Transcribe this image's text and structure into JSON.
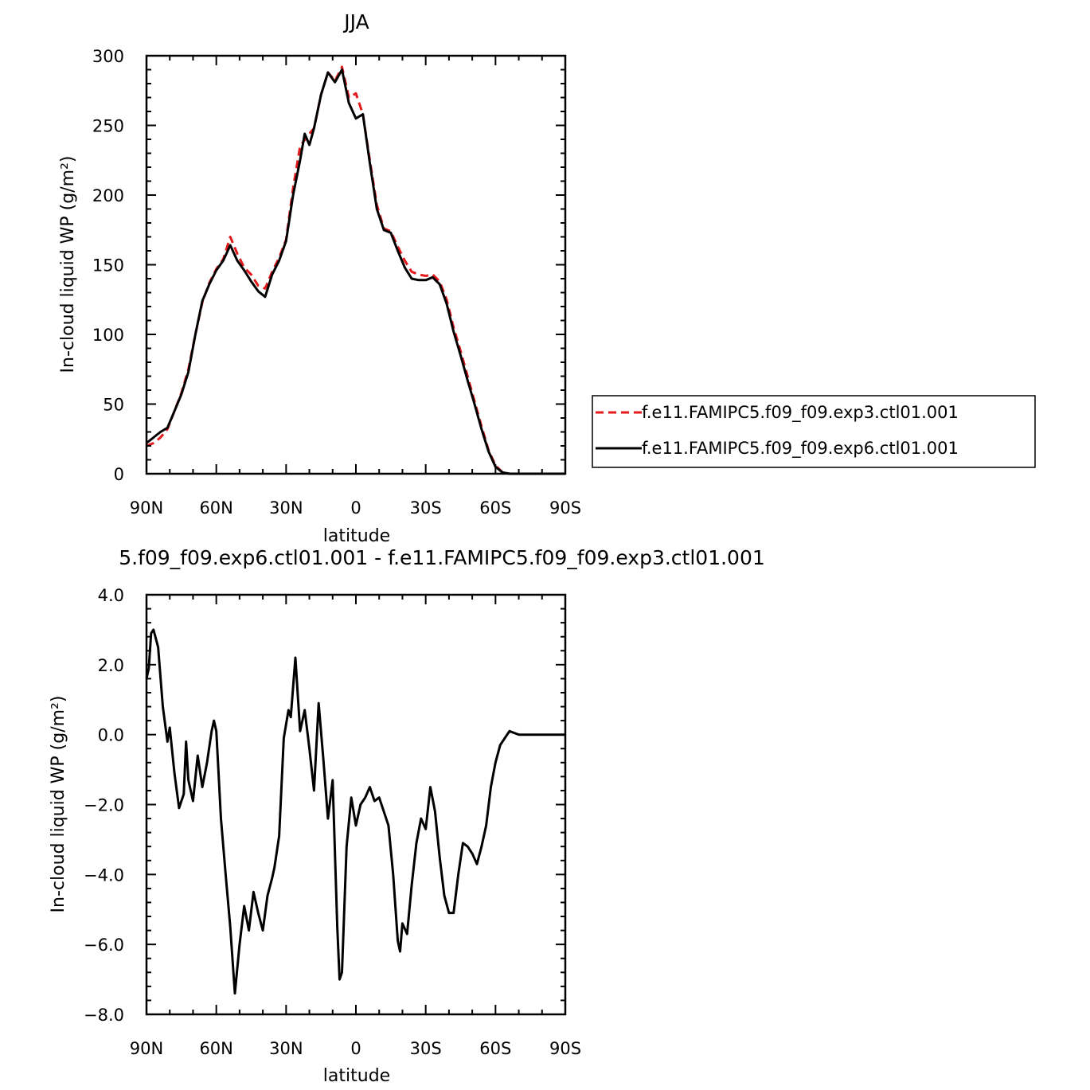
{
  "chart_data": [
    {
      "type": "line",
      "title": "JJA",
      "xlabel": "latitude",
      "ylabel": "In-cloud liquid WP (g/m²)",
      "xlim": [
        90,
        -90
      ],
      "ylim": [
        0,
        300
      ],
      "xticks": [
        90,
        60,
        30,
        0,
        -30,
        -60,
        -90
      ],
      "xtick_labels": [
        "90N",
        "60N",
        "30N",
        "0",
        "30S",
        "60S",
        "90S"
      ],
      "yticks": [
        0,
        50,
        100,
        150,
        200,
        250,
        300
      ],
      "ytick_labels": [
        "0",
        "50",
        "100",
        "150",
        "200",
        "250",
        "300"
      ],
      "grid": false,
      "legend": "outside-right",
      "series": [
        {
          "name": "f.e11.FAMIPC5.f09_f09.exp3.ctl01.001",
          "color": "#e41a1c",
          "dash": "dashed",
          "points": [
            [
              90,
              20
            ],
            [
              87,
              22
            ],
            [
              84,
              26
            ],
            [
              81,
              32
            ],
            [
              78,
              45
            ],
            [
              75,
              58
            ],
            [
              72,
              75
            ],
            [
              69,
              100
            ],
            [
              66,
              123
            ],
            [
              63,
              137
            ],
            [
              60,
              147
            ],
            [
              57,
              154
            ],
            [
              54,
              170
            ],
            [
              51,
              158
            ],
            [
              48,
              148
            ],
            [
              45,
              143
            ],
            [
              42,
              135
            ],
            [
              39,
              133
            ],
            [
              36,
              145
            ],
            [
              33,
              155
            ],
            [
              30,
              168
            ],
            [
              27,
              205
            ],
            [
              24,
              235
            ],
            [
              21,
              242
            ],
            [
              18,
              248
            ],
            [
              15,
              272
            ],
            [
              12,
              288
            ],
            [
              9,
              282
            ],
            [
              6,
              292
            ],
            [
              3,
              270
            ],
            [
              0,
              273
            ],
            [
              -3,
              258
            ],
            [
              -6,
              225
            ],
            [
              -9,
              193
            ],
            [
              -12,
              176
            ],
            [
              -15,
              174
            ],
            [
              -18,
              163
            ],
            [
              -21,
              153
            ],
            [
              -24,
              145
            ],
            [
              -27,
              143
            ],
            [
              -30,
              142
            ],
            [
              -33,
              143
            ],
            [
              -36,
              138
            ],
            [
              -39,
              125
            ],
            [
              -42,
              105
            ],
            [
              -45,
              88
            ],
            [
              -48,
              70
            ],
            [
              -51,
              52
            ],
            [
              -54,
              34
            ],
            [
              -57,
              17
            ],
            [
              -60,
              6
            ],
            [
              -63,
              1
            ],
            [
              -66,
              0
            ],
            [
              -69,
              0
            ],
            [
              -90,
              0
            ]
          ]
        },
        {
          "name": "f.e11.FAMIPC5.f09_f09.exp6.ctl01.001",
          "color": "#000000",
          "dash": "solid",
          "points": [
            [
              90,
              22
            ],
            [
              87,
              26
            ],
            [
              84,
              30
            ],
            [
              81,
              33
            ],
            [
              78,
              45
            ],
            [
              75,
              57
            ],
            [
              72,
              73
            ],
            [
              69,
              100
            ],
            [
              66,
              124
            ],
            [
              63,
              136
            ],
            [
              60,
              146
            ],
            [
              57,
              153
            ],
            [
              54,
              164
            ],
            [
              51,
              153
            ],
            [
              48,
              146
            ],
            [
              45,
              138
            ],
            [
              42,
              131
            ],
            [
              39,
              127
            ],
            [
              36,
              143
            ],
            [
              33,
              153
            ],
            [
              30,
              167
            ],
            [
              27,
              200
            ],
            [
              24,
              225
            ],
            [
              22,
              244
            ],
            [
              20,
              236
            ],
            [
              18,
              248
            ],
            [
              15,
              272
            ],
            [
              12,
              288
            ],
            [
              9,
              281
            ],
            [
              6,
              290
            ],
            [
              3,
              266
            ],
            [
              0,
              255
            ],
            [
              -3,
              258
            ],
            [
              -6,
              223
            ],
            [
              -9,
              190
            ],
            [
              -12,
              175
            ],
            [
              -15,
              173
            ],
            [
              -18,
              160
            ],
            [
              -21,
              148
            ],
            [
              -24,
              140
            ],
            [
              -27,
              139
            ],
            [
              -30,
              139
            ],
            [
              -33,
              141
            ],
            [
              -36,
              136
            ],
            [
              -39,
              122
            ],
            [
              -42,
              102
            ],
            [
              -45,
              85
            ],
            [
              -48,
              67
            ],
            [
              -51,
              50
            ],
            [
              -54,
              32
            ],
            [
              -57,
              16
            ],
            [
              -60,
              5
            ],
            [
              -63,
              1
            ],
            [
              -66,
              0
            ],
            [
              -69,
              0
            ],
            [
              -90,
              0
            ]
          ]
        }
      ]
    },
    {
      "type": "line",
      "title": "5.f09_f09.exp6.ctl01.001 - f.e11.FAMIPC5.f09_f09.exp3.ctl01.001",
      "xlabel": "latitude",
      "ylabel": "In-cloud liquid WP (g/m²)",
      "xlim": [
        90,
        -90
      ],
      "ylim": [
        -8,
        4
      ],
      "xticks": [
        90,
        60,
        30,
        0,
        -30,
        -60,
        -90
      ],
      "xtick_labels": [
        "90N",
        "60N",
        "30N",
        "0",
        "30S",
        "60S",
        "90S"
      ],
      "yticks": [
        -8,
        -6,
        -4,
        -2,
        0,
        2,
        4
      ],
      "ytick_labels": [
        "−8.0",
        "−6.0",
        "−4.0",
        "−2.0",
        "0.0",
        "2.0",
        "4.0"
      ],
      "grid": false,
      "series": [
        {
          "color": "#000000",
          "dash": "solid",
          "points": [
            [
              90,
              1.6
            ],
            [
              89,
              1.9
            ],
            [
              88,
              2.9
            ],
            [
              87,
              3.0
            ],
            [
              85,
              2.5
            ],
            [
              83,
              0.8
            ],
            [
              81,
              -0.2
            ],
            [
              80,
              0.2
            ],
            [
              78,
              -1.1
            ],
            [
              76,
              -2.1
            ],
            [
              74,
              -1.7
            ],
            [
              73,
              -0.2
            ],
            [
              72,
              -1.3
            ],
            [
              70,
              -1.9
            ],
            [
              68,
              -0.6
            ],
            [
              66,
              -1.5
            ],
            [
              64,
              -0.8
            ],
            [
              62,
              0.1
            ],
            [
              61,
              0.4
            ],
            [
              60,
              0.1
            ],
            [
              58,
              -2.4
            ],
            [
              56,
              -4.0
            ],
            [
              54,
              -5.5
            ],
            [
              52,
              -7.4
            ],
            [
              50,
              -6.0
            ],
            [
              48,
              -4.9
            ],
            [
              46,
              -5.6
            ],
            [
              44,
              -4.5
            ],
            [
              42,
              -5.1
            ],
            [
              40,
              -5.6
            ],
            [
              38,
              -4.6
            ],
            [
              36,
              -4.1
            ],
            [
              35,
              -3.8
            ],
            [
              33,
              -2.9
            ],
            [
              31,
              -0.1
            ],
            [
              29,
              0.7
            ],
            [
              28,
              0.5
            ],
            [
              26,
              2.2
            ],
            [
              24,
              0.1
            ],
            [
              22,
              0.7
            ],
            [
              20,
              -0.4
            ],
            [
              18,
              -1.6
            ],
            [
              16,
              0.9
            ],
            [
              14,
              -0.7
            ],
            [
              12,
              -2.4
            ],
            [
              10,
              -1.3
            ],
            [
              8,
              -5.5
            ],
            [
              7,
              -7.0
            ],
            [
              6,
              -6.8
            ],
            [
              4,
              -3.2
            ],
            [
              2,
              -1.8
            ],
            [
              0,
              -2.6
            ],
            [
              -2,
              -2.0
            ],
            [
              -4,
              -1.8
            ],
            [
              -6,
              -1.5
            ],
            [
              -8,
              -1.9
            ],
            [
              -10,
              -1.8
            ],
            [
              -12,
              -2.2
            ],
            [
              -14,
              -2.6
            ],
            [
              -16,
              -4.0
            ],
            [
              -18,
              -5.9
            ],
            [
              -19,
              -6.2
            ],
            [
              -20,
              -5.4
            ],
            [
              -22,
              -5.7
            ],
            [
              -24,
              -4.3
            ],
            [
              -26,
              -3.1
            ],
            [
              -28,
              -2.4
            ],
            [
              -30,
              -2.7
            ],
            [
              -32,
              -1.5
            ],
            [
              -34,
              -2.2
            ],
            [
              -36,
              -3.5
            ],
            [
              -38,
              -4.6
            ],
            [
              -40,
              -5.1
            ],
            [
              -42,
              -5.1
            ],
            [
              -44,
              -4.0
            ],
            [
              -46,
              -3.1
            ],
            [
              -48,
              -3.2
            ],
            [
              -50,
              -3.4
            ],
            [
              -52,
              -3.7
            ],
            [
              -54,
              -3.2
            ],
            [
              -56,
              -2.6
            ],
            [
              -58,
              -1.5
            ],
            [
              -60,
              -0.8
            ],
            [
              -62,
              -0.3
            ],
            [
              -64,
              -0.1
            ],
            [
              -66,
              0.1
            ],
            [
              -68,
              0.05
            ],
            [
              -70,
              0.0
            ],
            [
              -72,
              0.0
            ],
            [
              -90,
              0.0
            ]
          ]
        }
      ]
    }
  ]
}
